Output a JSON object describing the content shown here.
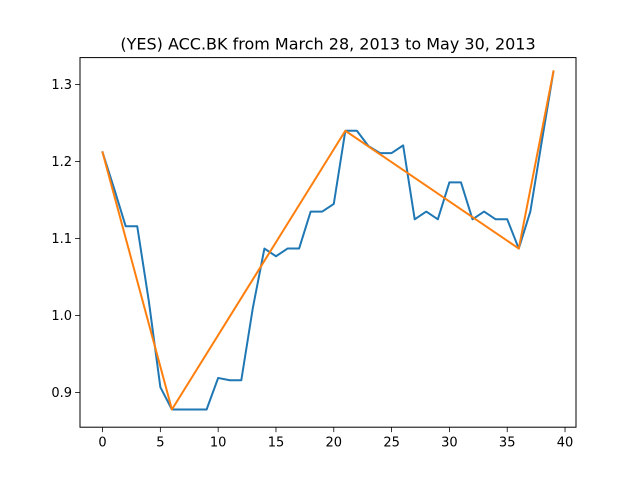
{
  "chart_data": {
    "type": "line",
    "title": "(YES) ACC.BK from March 28, 2013 to May 30, 2013",
    "xlabel": "",
    "ylabel": "",
    "xlim": [
      -1.95,
      40.95
    ],
    "ylim": [
      0.855,
      1.335
    ],
    "grid": false,
    "x_ticks": [
      0,
      5,
      10,
      15,
      20,
      25,
      30,
      35,
      40
    ],
    "y_ticks": [
      0.9,
      1.0,
      1.1,
      1.2,
      1.3
    ],
    "x_tick_labels": [
      "0",
      "5",
      "10",
      "15",
      "20",
      "25",
      "30",
      "35",
      "40"
    ],
    "y_tick_labels": [
      "0.9",
      "1.0",
      "1.1",
      "1.2",
      "1.3"
    ],
    "series": [
      {
        "color": "#1f77b4",
        "x": [
          0,
          1,
          2,
          3,
          4,
          5,
          6,
          7,
          8,
          9,
          10,
          11,
          12,
          13,
          14,
          15,
          16,
          17,
          18,
          19,
          20,
          21,
          22,
          23,
          24,
          25,
          26,
          27,
          28,
          29,
          30,
          31,
          32,
          33,
          34,
          35,
          36,
          37,
          38,
          39
        ],
        "values": [
          1.212,
          1.165,
          1.116,
          1.116,
          1.019,
          0.907,
          0.878,
          0.878,
          0.878,
          0.878,
          0.919,
          0.916,
          0.916,
          1.01,
          1.087,
          1.077,
          1.087,
          1.087,
          1.135,
          1.135,
          1.145,
          1.24,
          1.24,
          1.22,
          1.211,
          1.211,
          1.221,
          1.125,
          1.135,
          1.125,
          1.173,
          1.173,
          1.125,
          1.135,
          1.125,
          1.125,
          1.087,
          1.135,
          1.227,
          1.317
        ]
      },
      {
        "color": "#ff7f0e",
        "x": [
          0,
          6,
          21,
          36,
          39
        ],
        "values": [
          1.212,
          0.878,
          1.24,
          1.087,
          1.317
        ]
      }
    ]
  }
}
